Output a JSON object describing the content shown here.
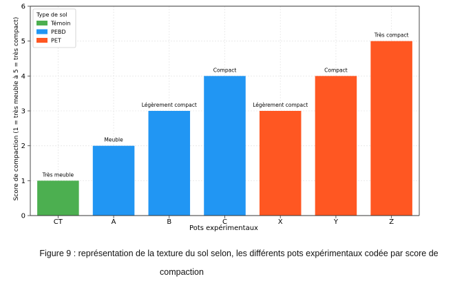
{
  "chart_data": {
    "type": "bar",
    "title": "",
    "xlabel": "Pots expérimentaux",
    "ylabel": "Score de compaction (1 = très meuble à 5 = très compact)",
    "categories": [
      "CT",
      "A",
      "B",
      "C",
      "X",
      "Y",
      "Z"
    ],
    "values": [
      1,
      2,
      3,
      4,
      3,
      4,
      5
    ],
    "groups": [
      "Témoin",
      "PEBD",
      "PEBD",
      "PEBD",
      "PET",
      "PET",
      "PET"
    ],
    "bar_labels": [
      "Très meuble",
      "Meuble",
      "Légèrement compact",
      "Compact",
      "Légèrement compact",
      "Compact",
      "Très compact"
    ],
    "ylim": [
      0,
      6
    ],
    "yticks": [
      0,
      1,
      2,
      3,
      4,
      5,
      6
    ],
    "grid": true,
    "legend": {
      "title": "Type de sol",
      "placement": "top-left",
      "entries": [
        {
          "label": "Témoin",
          "color": "#4caf50"
        },
        {
          "label": "PEBD",
          "color": "#2196f3"
        },
        {
          "label": "PET",
          "color": "#ff5722"
        }
      ]
    }
  },
  "caption": {
    "line1": "Figure 9 : représentation de la texture du sol selon, les différents pots expérimentaux codée par score de",
    "line2": "compaction"
  }
}
